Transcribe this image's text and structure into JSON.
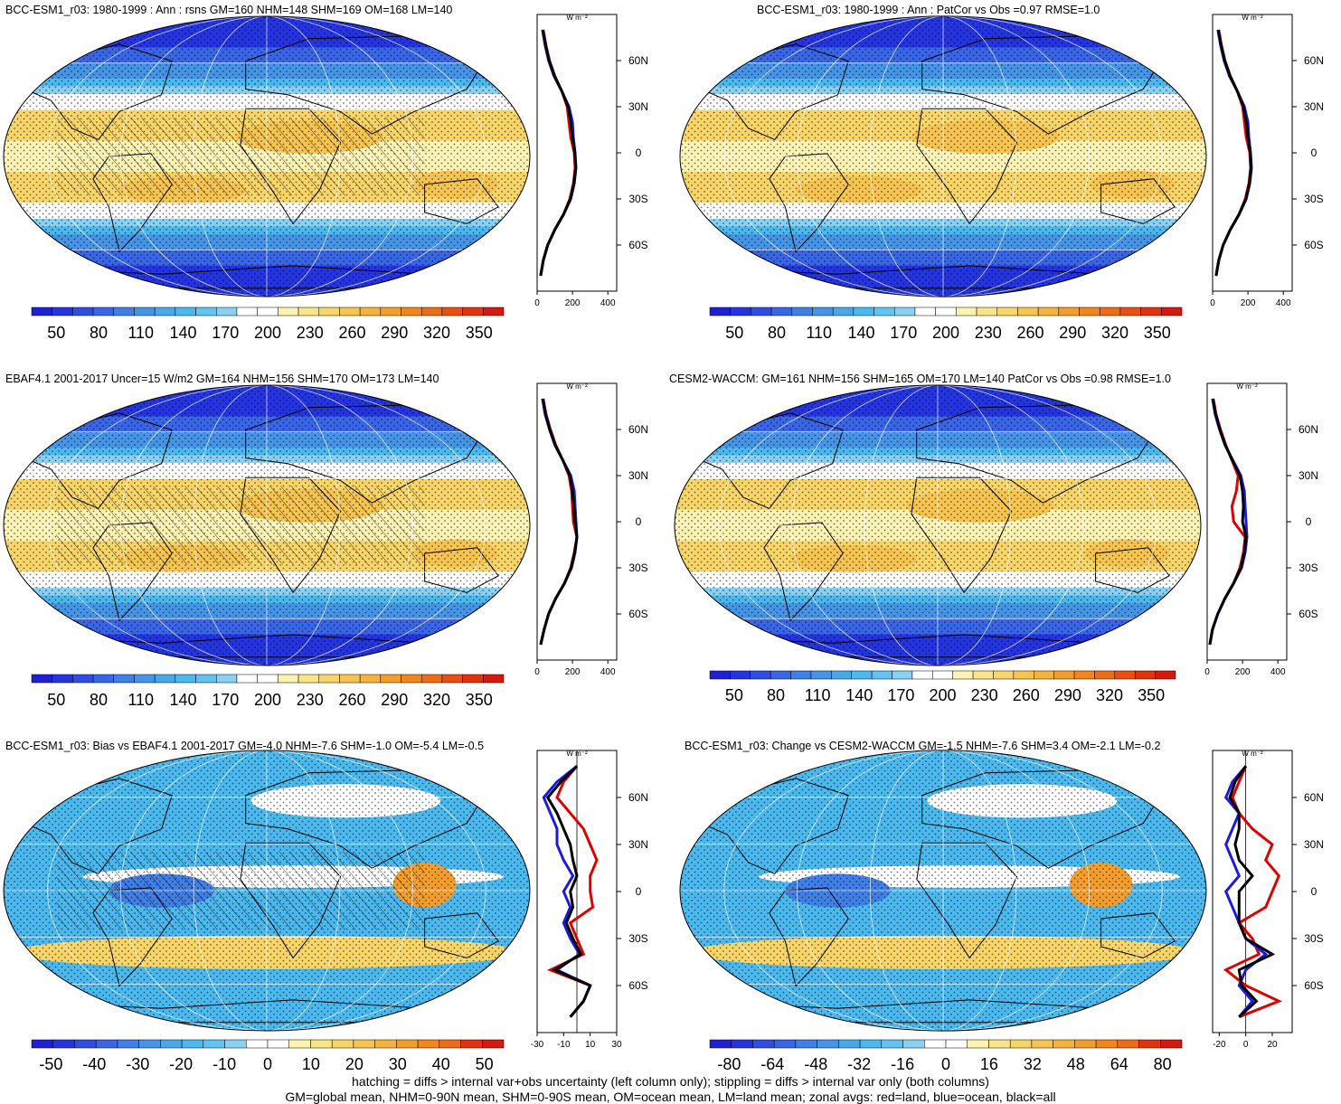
{
  "colors": {
    "ocean_low": "#2a2fe8",
    "mid_blue": "#48a3e0",
    "white": "#ffffff",
    "yellow": "#f8e28a",
    "orange": "#f6b04a",
    "red": "#e01f1f",
    "line_land": "#e00000",
    "line_ocean": "#1a1ae0",
    "line_all": "#000000"
  },
  "palette_abs": [
    "#1f1fd8",
    "#2434e0",
    "#2f4de4",
    "#3966e6",
    "#3f7fe6",
    "#4694e6",
    "#4aa7ea",
    "#4bb8ee",
    "#62c3f0",
    "#89d0f2",
    "#ffffff",
    "#ffffff",
    "#fcf2b2",
    "#f9e589",
    "#f7d569",
    "#f6c450",
    "#f5b23e",
    "#f39d2c",
    "#f1861f",
    "#ee6b17",
    "#ea4f12",
    "#e2330f",
    "#d5190e"
  ],
  "palette_diff": [
    "#1f1fd8",
    "#2434e0",
    "#2f4de4",
    "#3966e6",
    "#3f7fe6",
    "#4694e6",
    "#4aa7ea",
    "#4bb8ee",
    "#62c3f0",
    "#89d0f2",
    "#ffffff",
    "#ffffff",
    "#fcf2b2",
    "#f9e589",
    "#f7d569",
    "#f6c450",
    "#f5b23e",
    "#f39d2c",
    "#f1861f",
    "#ee6b17",
    "#e2330f",
    "#d5190e"
  ],
  "footer": {
    "line1": "hatching = diffs > internal var+obs uncertainty (left column only); stippling = diffs > internal var only (both columns)",
    "line2": "GM=global mean, NHM=0-90N mean, SHM=0-90S mean, OM=ocean mean, LM=land mean; zonal avgs: red=land, blue=ocean, black=all"
  },
  "chart_data": [
    {
      "type": "map",
      "title": "BCC-ESM1_r03: 1980-1999 : Ann : rsns GM=160 NHM=148 SHM=169 OM=168 LM=140",
      "colorbar_ticks": [
        "50",
        "80",
        "110",
        "140",
        "170",
        "200",
        "230",
        "260",
        "290",
        "320",
        "350"
      ],
      "zonal": {
        "unit": "W m⁻²",
        "xlim": [
          0,
          450
        ],
        "xticks": [
          "0",
          "200",
          "400"
        ],
        "yticks": [
          "60N",
          "30N",
          "0",
          "30S",
          "60S"
        ],
        "lat": [
          -80,
          -70,
          -60,
          -50,
          -40,
          -30,
          -20,
          -10,
          0,
          10,
          20,
          30,
          40,
          50,
          60,
          70,
          80
        ],
        "land": [
          20,
          35,
          60,
          100,
          150,
          185,
          205,
          215,
          210,
          190,
          180,
          170,
          140,
          100,
          70,
          50,
          35
        ],
        "ocean": [
          20,
          35,
          60,
          100,
          150,
          190,
          210,
          220,
          215,
          205,
          200,
          180,
          140,
          95,
          65,
          45,
          30
        ],
        "all": [
          20,
          35,
          60,
          100,
          150,
          188,
          208,
          218,
          213,
          200,
          190,
          175,
          140,
          98,
          68,
          48,
          32
        ]
      }
    },
    {
      "type": "map",
      "title": "BCC-ESM1_r03: 1980-1999 : Ann : PatCor vs Obs =0.97 RMSE=1.0",
      "colorbar_ticks": [
        "50",
        "80",
        "110",
        "140",
        "170",
        "200",
        "230",
        "260",
        "290",
        "320",
        "350"
      ],
      "zonal": {
        "unit": "W m⁻²",
        "xlim": [
          0,
          450
        ],
        "xticks": [
          "0",
          "200",
          "400"
        ],
        "yticks": [
          "60N",
          "30N",
          "0",
          "30S",
          "60S"
        ],
        "lat": [
          -80,
          -70,
          -60,
          -50,
          -40,
          -30,
          -20,
          -10,
          0,
          10,
          20,
          30,
          40,
          50,
          60,
          70,
          80
        ],
        "land": [
          20,
          35,
          60,
          100,
          150,
          185,
          205,
          215,
          210,
          190,
          180,
          170,
          140,
          100,
          70,
          50,
          35
        ],
        "ocean": [
          20,
          35,
          60,
          100,
          150,
          190,
          210,
          220,
          215,
          205,
          200,
          180,
          140,
          95,
          65,
          45,
          30
        ],
        "all": [
          20,
          35,
          60,
          100,
          150,
          188,
          208,
          218,
          213,
          200,
          190,
          175,
          140,
          98,
          68,
          48,
          32
        ]
      }
    },
    {
      "type": "map",
      "title": "EBAF4.1 2001-2017 Uncer=15 W/m2 GM=164 NHM=156 SHM=170 OM=173 LM=140",
      "colorbar_ticks": [
        "50",
        "80",
        "110",
        "140",
        "170",
        "200",
        "230",
        "260",
        "290",
        "320",
        "350"
      ],
      "zonal": {
        "unit": "W m⁻²",
        "xlim": [
          0,
          450
        ],
        "xticks": [
          "0",
          "200",
          "400"
        ],
        "yticks": [
          "60N",
          "30N",
          "0",
          "30S",
          "60S"
        ],
        "lat": [
          -80,
          -70,
          -60,
          -50,
          -40,
          -30,
          -20,
          -10,
          0,
          10,
          20,
          30,
          40,
          50,
          60,
          70,
          80
        ],
        "land": [
          20,
          40,
          65,
          105,
          155,
          190,
          210,
          225,
          205,
          200,
          195,
          180,
          145,
          105,
          75,
          50,
          35
        ],
        "ocean": [
          20,
          40,
          65,
          105,
          155,
          195,
          215,
          225,
          220,
          215,
          210,
          190,
          145,
          100,
          70,
          45,
          30
        ],
        "all": [
          20,
          40,
          65,
          105,
          155,
          192,
          212,
          225,
          215,
          208,
          200,
          185,
          145,
          102,
          72,
          48,
          32
        ]
      }
    },
    {
      "type": "map",
      "title": "CESM2-WACCM: GM=161 NHM=156 SHM=165 OM=170 LM=140 PatCor vs Obs =0.98 RMSE=1.0",
      "colorbar_ticks": [
        "50",
        "80",
        "110",
        "140",
        "170",
        "200",
        "230",
        "260",
        "290",
        "320",
        "350"
      ],
      "zonal": {
        "unit": "W m⁻²",
        "xlim": [
          0,
          450
        ],
        "xticks": [
          "0",
          "200",
          "400"
        ],
        "yticks": [
          "60N",
          "30N",
          "0",
          "30S",
          "60S"
        ],
        "lat": [
          -80,
          -70,
          -60,
          -50,
          -40,
          -30,
          -20,
          -10,
          0,
          10,
          20,
          30,
          40,
          50,
          60,
          70,
          80
        ],
        "land": [
          15,
          30,
          60,
          100,
          150,
          185,
          205,
          215,
          150,
          140,
          165,
          175,
          140,
          105,
          75,
          50,
          35
        ],
        "ocean": [
          15,
          30,
          60,
          100,
          150,
          195,
          215,
          225,
          220,
          215,
          210,
          190,
          145,
          100,
          70,
          45,
          30
        ],
        "all": [
          15,
          30,
          60,
          100,
          150,
          190,
          210,
          220,
          200,
          205,
          200,
          185,
          142,
          102,
          72,
          48,
          32
        ]
      }
    },
    {
      "type": "map",
      "title": "BCC-ESM1_r03: Bias vs EBAF4.1 2001-2017 GM=-4.0 NHM=-7.6 SHM=-1.0 OM=-5.4 LM=-0.5",
      "colorbar_ticks": [
        "-50",
        "-40",
        "-30",
        "-20",
        "-10",
        "0",
        "10",
        "20",
        "30",
        "40",
        "50"
      ],
      "zonal": {
        "unit": "W m⁻²",
        "xlim": [
          -30,
          30
        ],
        "xticks": [
          "-30",
          "-10",
          "10",
          "30"
        ],
        "yticks": [
          "60N",
          "30N",
          "0",
          "30S",
          "60S"
        ],
        "lat": [
          -80,
          -70,
          -60,
          -50,
          -40,
          -30,
          -20,
          -10,
          0,
          10,
          20,
          30,
          40,
          50,
          60,
          70,
          80
        ],
        "land": [
          -5,
          5,
          10,
          -20,
          5,
          0,
          -5,
          12,
          10,
          10,
          15,
          10,
          5,
          -5,
          -15,
          -10,
          0
        ],
        "ocean": [
          -5,
          5,
          10,
          -15,
          2,
          -5,
          -10,
          -5,
          -10,
          -3,
          -10,
          -15,
          -15,
          -20,
          -25,
          -15,
          0
        ],
        "all": [
          -5,
          5,
          10,
          -17,
          3,
          -3,
          -8,
          -3,
          -5,
          0,
          -3,
          -5,
          -10,
          -15,
          -22,
          -12,
          0
        ]
      }
    },
    {
      "type": "map",
      "title": "BCC-ESM1_r03: Change vs CESM2-WACCM GM=-1.5 NHM=-7.6 SHM=3.4 OM=-2.1 LM=-0.2",
      "colorbar_ticks": [
        "-80",
        "-64",
        "-48",
        "-32",
        "-16",
        "0",
        "16",
        "32",
        "48",
        "64",
        "80"
      ],
      "zonal": {
        "unit": "W m⁻²",
        "xlim": [
          -25,
          35
        ],
        "xticks": [
          "-20",
          "0",
          "20"
        ],
        "yticks": [
          "60N",
          "30N",
          "0",
          "30S",
          "60S"
        ],
        "lat": [
          -80,
          -70,
          -60,
          -50,
          -40,
          -30,
          -20,
          -10,
          0,
          10,
          20,
          30,
          40,
          50,
          60,
          70,
          80
        ],
        "land": [
          -5,
          25,
          0,
          -15,
          10,
          5,
          -5,
          15,
          20,
          25,
          15,
          20,
          5,
          -5,
          -10,
          -5,
          0
        ],
        "ocean": [
          -5,
          5,
          -5,
          0,
          15,
          0,
          -5,
          -10,
          -15,
          -5,
          -10,
          -15,
          -10,
          -5,
          -15,
          -10,
          0
        ],
        "all": [
          -5,
          8,
          -3,
          -5,
          20,
          0,
          -5,
          -5,
          -5,
          5,
          -5,
          -8,
          -5,
          -5,
          -12,
          -8,
          0
        ]
      }
    }
  ]
}
